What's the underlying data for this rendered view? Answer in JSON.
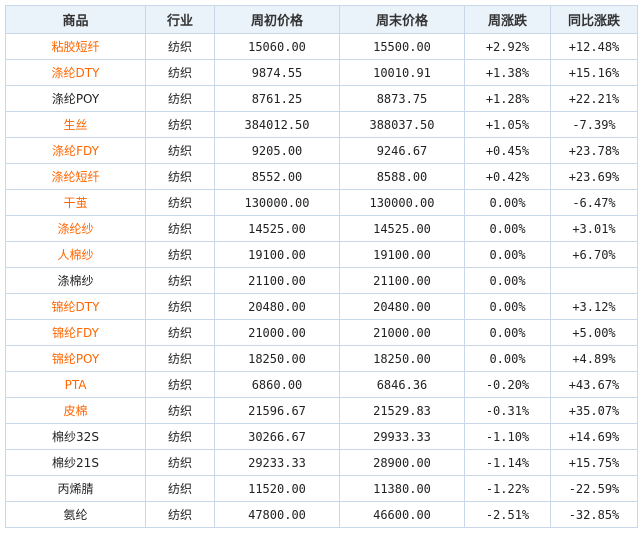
{
  "colors": {
    "header_bg": "#eaf2fa",
    "border": "#c8d8e8",
    "link": "#ff6600",
    "up": "#e8141c",
    "down": "#1a8c1a",
    "plain": "#222222"
  },
  "table": {
    "headers": [
      "商品",
      "行业",
      "周初价格",
      "周末价格",
      "周涨跌",
      "同比涨跌"
    ],
    "rows": [
      {
        "name": "粘胶短纤",
        "link": true,
        "industry": "纺织",
        "open": "15060.00",
        "close": "15500.00",
        "week_change": "+2.92%",
        "yoy_change": "+12.48%"
      },
      {
        "name": "涤纶DTY",
        "link": true,
        "industry": "纺织",
        "open": "9874.55",
        "close": "10010.91",
        "week_change": "+1.38%",
        "yoy_change": "+15.16%"
      },
      {
        "name": "涤纶POY",
        "link": false,
        "industry": "纺织",
        "open": "8761.25",
        "close": "8873.75",
        "week_change": "+1.28%",
        "yoy_change": "+22.21%"
      },
      {
        "name": "生丝",
        "link": true,
        "industry": "纺织",
        "open": "384012.50",
        "close": "388037.50",
        "week_change": "+1.05%",
        "yoy_change": "-7.39%"
      },
      {
        "name": "涤纶FDY",
        "link": true,
        "industry": "纺织",
        "open": "9205.00",
        "close": "9246.67",
        "week_change": "+0.45%",
        "yoy_change": "+23.78%"
      },
      {
        "name": "涤纶短纤",
        "link": true,
        "industry": "纺织",
        "open": "8552.00",
        "close": "8588.00",
        "week_change": "+0.42%",
        "yoy_change": "+23.69%"
      },
      {
        "name": "干茧",
        "link": true,
        "industry": "纺织",
        "open": "130000.00",
        "close": "130000.00",
        "week_change": "0.00%",
        "yoy_change": "-6.47%"
      },
      {
        "name": "涤纶纱",
        "link": true,
        "industry": "纺织",
        "open": "14525.00",
        "close": "14525.00",
        "week_change": "0.00%",
        "yoy_change": "+3.01%"
      },
      {
        "name": "人棉纱",
        "link": true,
        "industry": "纺织",
        "open": "19100.00",
        "close": "19100.00",
        "week_change": "0.00%",
        "yoy_change": "+6.70%"
      },
      {
        "name": "涤棉纱",
        "link": false,
        "industry": "纺织",
        "open": "21100.00",
        "close": "21100.00",
        "week_change": "0.00%",
        "yoy_change": ""
      },
      {
        "name": "锦纶DTY",
        "link": true,
        "industry": "纺织",
        "open": "20480.00",
        "close": "20480.00",
        "week_change": "0.00%",
        "yoy_change": "+3.12%"
      },
      {
        "name": "锦纶FDY",
        "link": true,
        "industry": "纺织",
        "open": "21000.00",
        "close": "21000.00",
        "week_change": "0.00%",
        "yoy_change": "+5.00%"
      },
      {
        "name": "锦纶POY",
        "link": true,
        "industry": "纺织",
        "open": "18250.00",
        "close": "18250.00",
        "week_change": "0.00%",
        "yoy_change": "+4.89%"
      },
      {
        "name": "PTA",
        "link": true,
        "industry": "纺织",
        "open": "6860.00",
        "close": "6846.36",
        "week_change": "-0.20%",
        "yoy_change": "+43.67%"
      },
      {
        "name": "皮棉",
        "link": true,
        "industry": "纺织",
        "open": "21596.67",
        "close": "21529.83",
        "week_change": "-0.31%",
        "yoy_change": "+35.07%"
      },
      {
        "name": "棉纱32S",
        "link": false,
        "industry": "纺织",
        "open": "30266.67",
        "close": "29933.33",
        "week_change": "-1.10%",
        "yoy_change": "+14.69%"
      },
      {
        "name": "棉纱21S",
        "link": false,
        "industry": "纺织",
        "open": "29233.33",
        "close": "28900.00",
        "week_change": "-1.14%",
        "yoy_change": "+15.75%"
      },
      {
        "name": "丙烯腈",
        "link": false,
        "industry": "纺织",
        "open": "11520.00",
        "close": "11380.00",
        "week_change": "-1.22%",
        "yoy_change": "-22.59%"
      },
      {
        "name": "氨纶",
        "link": false,
        "industry": "纺织",
        "open": "47800.00",
        "close": "46600.00",
        "week_change": "-2.51%",
        "yoy_change": "-32.85%"
      }
    ]
  }
}
